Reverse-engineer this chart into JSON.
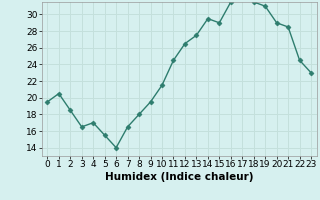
{
  "x": [
    0,
    1,
    2,
    3,
    4,
    5,
    6,
    7,
    8,
    9,
    10,
    11,
    12,
    13,
    14,
    15,
    16,
    17,
    18,
    19,
    20,
    21,
    22,
    23
  ],
  "y": [
    19.5,
    20.5,
    18.5,
    16.5,
    17.0,
    15.5,
    14.0,
    16.5,
    18.0,
    19.5,
    21.5,
    24.5,
    26.5,
    27.5,
    29.5,
    29.0,
    31.5,
    32.0,
    31.5,
    31.0,
    29.0,
    28.5,
    24.5,
    23.0
  ],
  "line_color": "#2e7d6e",
  "marker": "D",
  "marker_size": 2.5,
  "bg_color": "#d6f0ef",
  "grid_color": "#c4e0dc",
  "xlabel": "Humidex (Indice chaleur)",
  "xlim": [
    -0.5,
    23.5
  ],
  "ylim": [
    13,
    31.5
  ],
  "yticks": [
    14,
    16,
    18,
    20,
    22,
    24,
    26,
    28,
    30
  ],
  "xticks": [
    0,
    1,
    2,
    3,
    4,
    5,
    6,
    7,
    8,
    9,
    10,
    11,
    12,
    13,
    14,
    15,
    16,
    17,
    18,
    19,
    20,
    21,
    22,
    23
  ],
  "tick_labelsize": 6.5,
  "xlabel_fontsize": 7.5
}
